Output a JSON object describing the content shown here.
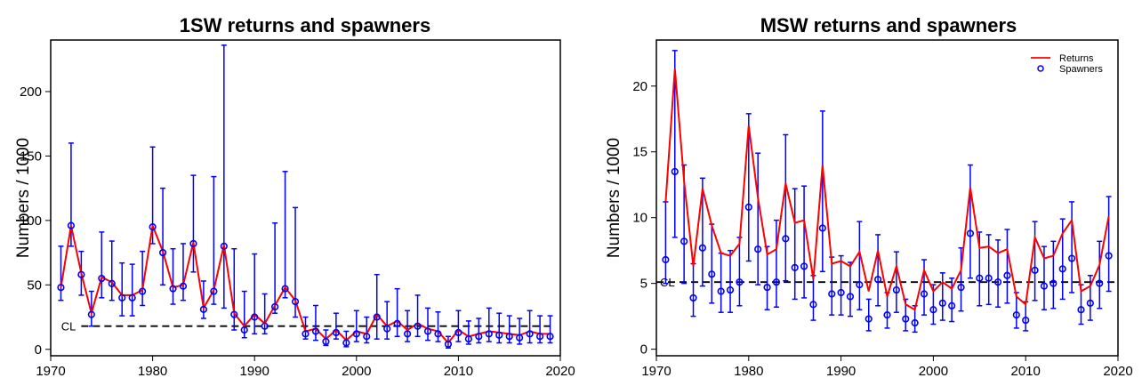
{
  "chart_data": [
    {
      "type": "line",
      "title": "1SW returns and spawners",
      "xlabel": "",
      "ylabel": "Numbers / 1000",
      "xlim": [
        1970,
        2020
      ],
      "ylim": [
        -5,
        240
      ],
      "xticks": [
        1970,
        1980,
        1990,
        2000,
        2010,
        2020
      ],
      "yticks": [
        0,
        50,
        100,
        150,
        200
      ],
      "grid": false,
      "reference_line": {
        "label": "CL",
        "value": 18,
        "from_x": 1973,
        "to_x": 2019,
        "style": "dashed"
      },
      "x": [
        1971,
        1972,
        1973,
        1974,
        1975,
        1976,
        1977,
        1978,
        1979,
        1980,
        1981,
        1982,
        1983,
        1984,
        1985,
        1986,
        1987,
        1988,
        1989,
        1990,
        1991,
        1992,
        1993,
        1994,
        1995,
        1996,
        1997,
        1998,
        1999,
        2000,
        2001,
        2002,
        2003,
        2004,
        2005,
        2006,
        2007,
        2008,
        2009,
        2010,
        2011,
        2012,
        2013,
        2014,
        2015,
        2016,
        2017,
        2018,
        2019
      ],
      "series": [
        {
          "name": "Returns",
          "color": "#ff0000",
          "values": [
            48,
            96,
            59,
            28,
            56,
            52,
            42,
            42,
            46,
            96,
            76,
            48,
            50,
            83,
            32,
            46,
            81,
            28,
            18,
            27,
            20,
            34,
            48,
            38,
            14,
            16,
            8,
            15,
            7,
            14,
            12,
            27,
            18,
            22,
            15,
            20,
            16,
            14,
            5,
            15,
            10,
            12,
            14,
            13,
            12,
            11,
            14,
            12,
            12
          ]
        },
        {
          "name": "Spawners",
          "color": "#0000ff",
          "values": [
            48,
            96,
            58,
            27,
            55,
            51,
            40,
            40,
            45,
            95,
            75,
            47,
            49,
            82,
            31,
            45,
            80,
            27,
            15,
            25,
            18,
            33,
            47,
            37,
            12,
            14,
            6,
            13,
            5,
            12,
            10,
            25,
            16,
            20,
            12,
            18,
            14,
            12,
            4,
            13,
            8,
            10,
            12,
            11,
            10,
            9,
            12,
            10,
            10
          ],
          "lower": [
            38,
            80,
            42,
            18,
            40,
            38,
            26,
            26,
            34,
            82,
            50,
            35,
            38,
            60,
            24,
            35,
            32,
            15,
            9,
            12,
            12,
            28,
            40,
            25,
            8,
            7,
            3,
            8,
            2,
            6,
            5,
            8,
            8,
            10,
            6,
            10,
            7,
            6,
            1,
            6,
            4,
            5,
            6,
            5,
            5,
            4,
            5,
            5,
            5
          ],
          "upper": [
            80,
            160,
            76,
            45,
            91,
            84,
            67,
            66,
            76,
            157,
            125,
            78,
            82,
            135,
            53,
            134,
            236,
            78,
            45,
            74,
            43,
            98,
            138,
            110,
            25,
            34,
            15,
            28,
            14,
            30,
            25,
            58,
            37,
            47,
            30,
            42,
            32,
            29,
            10,
            30,
            22,
            24,
            32,
            28,
            26,
            24,
            30,
            26,
            26
          ]
        }
      ]
    },
    {
      "type": "line",
      "title": "MSW returns and spawners",
      "xlabel": "",
      "ylabel": "Numbers / 1000",
      "xlim": [
        1970,
        2020
      ],
      "ylim": [
        -0.5,
        23.5
      ],
      "xticks": [
        1970,
        1980,
        1990,
        2000,
        2010,
        2020
      ],
      "yticks": [
        0,
        5,
        10,
        15,
        20
      ],
      "grid": false,
      "legend": {
        "position": "top-right",
        "entries": [
          "Returns",
          "Spawners"
        ]
      },
      "reference_line": {
        "label": "CL",
        "value": 5.1,
        "from_x": 1970,
        "to_x": 2020,
        "style": "dashed"
      },
      "x": [
        1971,
        1972,
        1973,
        1974,
        1975,
        1976,
        1977,
        1978,
        1979,
        1980,
        1981,
        1982,
        1983,
        1984,
        1985,
        1986,
        1987,
        1988,
        1989,
        1990,
        1991,
        1992,
        1993,
        1994,
        1995,
        1996,
        1997,
        1998,
        1999,
        2000,
        2001,
        2002,
        2003,
        2004,
        2005,
        2006,
        2007,
        2008,
        2009,
        2010,
        2011,
        2012,
        2013,
        2014,
        2015,
        2016,
        2017,
        2018,
        2019
      ],
      "series": [
        {
          "name": "Returns",
          "color": "#ff0000",
          "values": [
            11.2,
            21.3,
            12.8,
            6.3,
            12.2,
            9.4,
            7.3,
            7.1,
            8.0,
            17.0,
            11.5,
            7.2,
            7.6,
            12.6,
            9.6,
            9.8,
            5.3,
            14.0,
            6.5,
            6.7,
            6.3,
            7.4,
            4.4,
            7.5,
            4.0,
            6.3,
            3.4,
            3.0,
            6.0,
            4.4,
            5.1,
            4.6,
            6.0,
            12.3,
            7.7,
            7.8,
            7.3,
            7.6,
            4.0,
            3.4,
            8.5,
            6.9,
            7.1,
            8.8,
            9.8,
            4.4,
            4.8,
            6.4,
            10.1
          ]
        },
        {
          "name": "Spawners",
          "color": "#0000ff",
          "values": [
            6.8,
            13.5,
            8.2,
            3.9,
            7.7,
            5.7,
            4.4,
            4.5,
            5.1,
            10.8,
            7.6,
            4.7,
            5.1,
            8.4,
            6.2,
            6.3,
            3.4,
            9.2,
            4.2,
            4.3,
            4.0,
            4.9,
            2.3,
            5.3,
            2.6,
            4.5,
            2.3,
            2.0,
            4.2,
            3.0,
            3.5,
            3.3,
            4.7,
            8.8,
            5.4,
            5.4,
            5.1,
            5.6,
            2.6,
            2.2,
            6.0,
            4.8,
            5.0,
            6.1,
            6.9,
            3.0,
            3.5,
            5.0,
            7.1
          ],
          "lower": [
            5.0,
            8.5,
            5.0,
            2.5,
            4.8,
            3.5,
            2.8,
            2.8,
            3.3,
            6.7,
            4.9,
            3.0,
            3.2,
            5.2,
            3.8,
            3.9,
            2.2,
            5.9,
            2.6,
            2.6,
            2.5,
            3.0,
            1.4,
            3.3,
            1.6,
            2.8,
            1.4,
            1.3,
            2.6,
            1.9,
            2.2,
            2.1,
            2.9,
            5.4,
            3.3,
            3.4,
            3.2,
            3.5,
            1.6,
            1.4,
            3.7,
            3.0,
            3.1,
            3.8,
            4.3,
            1.9,
            2.2,
            3.1,
            4.4
          ],
          "upper": [
            11.2,
            22.7,
            14.0,
            6.5,
            13.0,
            9.5,
            7.3,
            7.5,
            8.5,
            17.9,
            14.9,
            7.8,
            9.8,
            16.3,
            12.2,
            12.4,
            5.6,
            18.1,
            7.0,
            7.1,
            6.6,
            9.7,
            3.8,
            8.7,
            4.3,
            7.4,
            3.8,
            3.3,
            6.8,
            4.9,
            5.8,
            5.4,
            7.7,
            14.0,
            8.9,
            8.7,
            8.3,
            9.1,
            4.3,
            3.6,
            9.7,
            7.8,
            8.2,
            9.9,
            11.2,
            4.9,
            5.6,
            8.2,
            11.6
          ]
        }
      ]
    }
  ]
}
